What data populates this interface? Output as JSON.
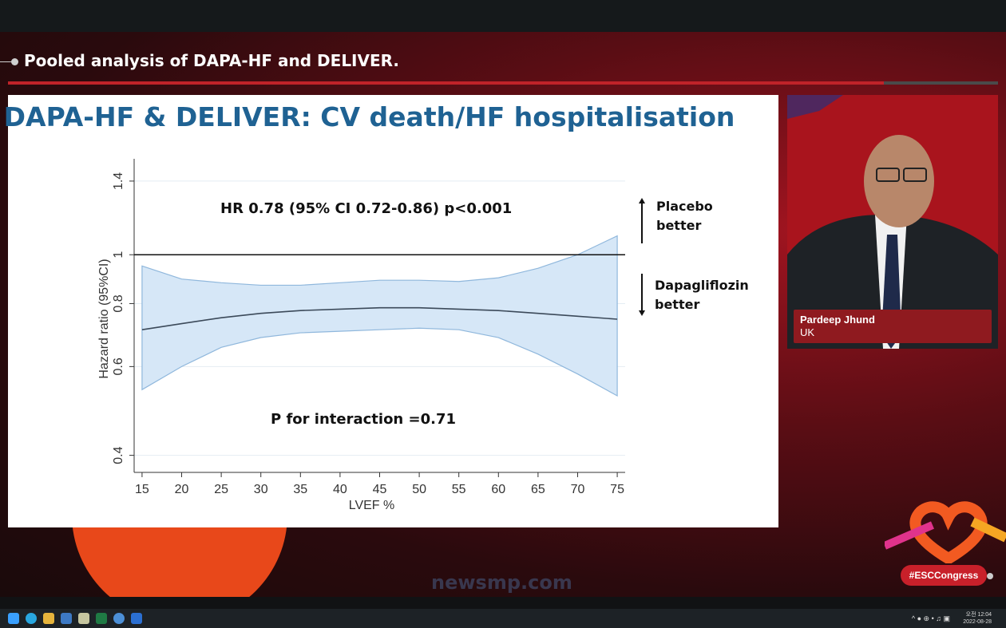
{
  "broadcast": {
    "header_title": "Pooled analysis of DAPA-HF and DELIVER.",
    "progress_fraction": 0.885,
    "hashtag": "#ESCCongress",
    "watermark": "newsmp.com"
  },
  "speaker": {
    "name": "Pardeep Jhund",
    "location": "UK"
  },
  "slide": {
    "title": "DAPA-HF & DELIVER: CV death/HF hospitalisation",
    "hr_text": "HR 0.78 (95% CI 0.72-0.86) p<0.001",
    "interaction_text": "P for interaction =0.71",
    "upper_label_1": "Placebo",
    "upper_label_2": "better",
    "lower_label_1": "Dapagliflozin",
    "lower_label_2": "better"
  },
  "chart_data": {
    "type": "line",
    "xlabel": "LVEF %",
    "ylabel": "Hazard ratio (95%CI)",
    "x_ticks": [
      15,
      20,
      25,
      30,
      35,
      40,
      45,
      50,
      55,
      60,
      65,
      70,
      75
    ],
    "y_ticks": [
      0.4,
      0.6,
      0.8,
      1,
      1.4
    ],
    "y_tick_labels": [
      "0.4",
      "0.6",
      "0.8",
      "1",
      "1.4"
    ],
    "y_scale": "log",
    "xlim": [
      14,
      76
    ],
    "ylim": [
      0.37,
      1.55
    ],
    "reference_line": 1,
    "x": [
      15,
      20,
      25,
      30,
      35,
      40,
      45,
      50,
      55,
      60,
      65,
      70,
      75
    ],
    "series": [
      {
        "role": "estimate",
        "values": [
          0.71,
          0.73,
          0.75,
          0.765,
          0.775,
          0.78,
          0.785,
          0.785,
          0.78,
          0.775,
          0.765,
          0.755,
          0.745
        ]
      },
      {
        "role": "upper_ci",
        "values": [
          0.95,
          0.895,
          0.88,
          0.87,
          0.87,
          0.88,
          0.89,
          0.89,
          0.885,
          0.9,
          0.94,
          1.0,
          1.09
        ]
      },
      {
        "role": "lower_ci",
        "values": [
          0.54,
          0.6,
          0.655,
          0.685,
          0.7,
          0.705,
          0.71,
          0.715,
          0.71,
          0.685,
          0.635,
          0.58,
          0.525
        ]
      }
    ]
  },
  "taskbar": {
    "icons": [
      "windows-start-icon",
      "edge-browser-icon",
      "file-explorer-icon",
      "notepad-icon",
      "app-icon",
      "excel-icon",
      "network-app-icon",
      "store-icon"
    ],
    "clock_time": "오전 12:04",
    "clock_date": "2022-08-28"
  }
}
